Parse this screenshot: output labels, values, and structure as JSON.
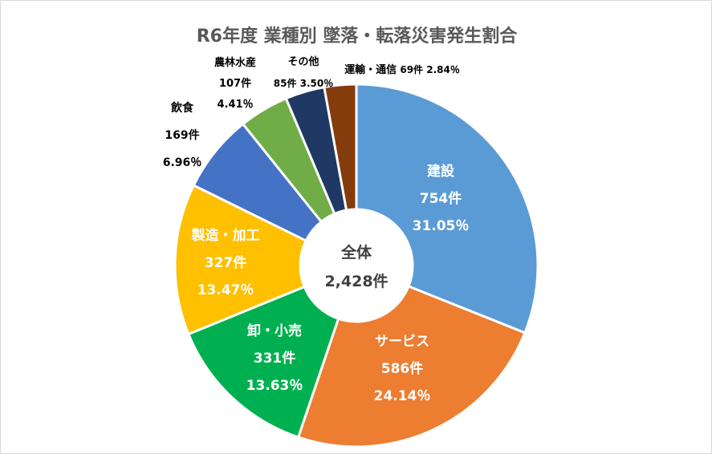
{
  "chart_data": {
    "type": "pie",
    "variant": "donut",
    "title": "R6年度 業種別 墜落・転落災害発生割合",
    "center_label": {
      "name": "全体",
      "total": "2,428件"
    },
    "slices": [
      {
        "name": "建設",
        "count": "754件",
        "value": 754,
        "percent": "31.05％",
        "color": "#5B9BD5"
      },
      {
        "name": "サービス",
        "count": "586件",
        "value": 586,
        "percent": "24.14％",
        "color": "#ED7D31"
      },
      {
        "name": "卸・小売",
        "count": "331件",
        "value": 331,
        "percent": "13.63％",
        "color": "#00B050"
      },
      {
        "name": "製造・加工",
        "count": "327件",
        "value": 327,
        "percent": "13.47％",
        "color": "#FFC000"
      },
      {
        "name": "飲食",
        "count": "169件",
        "value": 169,
        "percent": "6.96％",
        "color": "#4472C4"
      },
      {
        "name": "農林水産",
        "count": "107件",
        "value": 107,
        "percent": "4.41％",
        "color": "#70AD47"
      },
      {
        "name": "その他",
        "count": "85件",
        "value": 85,
        "percent": "3.50％",
        "color": "#203864"
      },
      {
        "name": "運輸・通信",
        "count": "69件",
        "value": 69,
        "percent": "2.84％",
        "color": "#843C0C"
      }
    ]
  }
}
